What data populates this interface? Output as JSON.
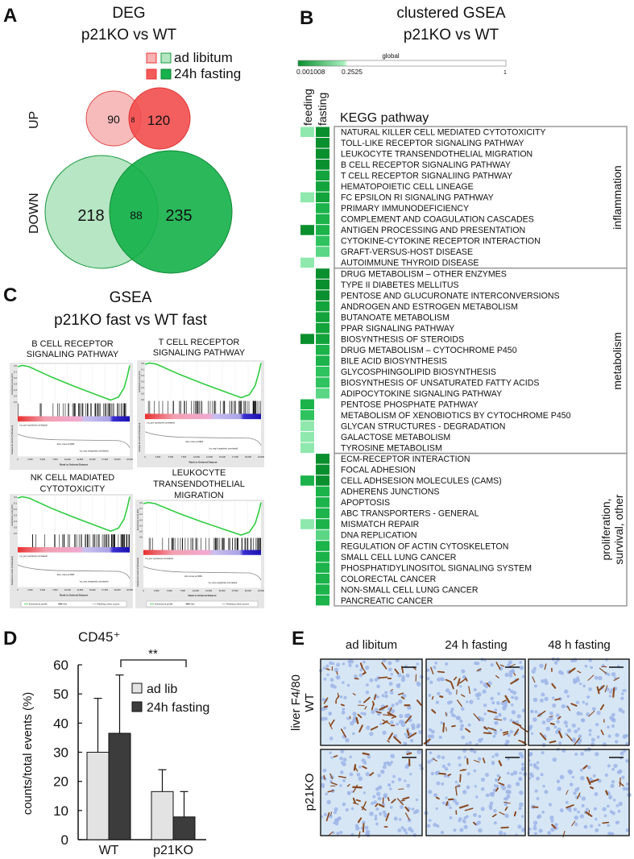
{
  "panel_labels": {
    "a": "A",
    "b": "B",
    "c": "C",
    "d": "D",
    "e": "E"
  },
  "panel_a": {
    "title_line1": "DEG",
    "title_line2": "p21KO vs WT",
    "legend": [
      {
        "label": "ad libitum",
        "up_color": "#f7b3b3",
        "down_color": "#b4e6c2"
      },
      {
        "label": "24h fasting",
        "up_color": "#f35a5a",
        "down_color": "#18b24c"
      }
    ],
    "up_label": "UP",
    "down_label": "DOWN"
  },
  "panel_b": {
    "title_line1": "clustered GSEA",
    "title_line2": "p21KO vs WT",
    "colorbar": {
      "label": "global",
      "min": "0.001008",
      "mid": "0.2525",
      "max": "1",
      "dark": "#0a8f2e",
      "light": "#a6f0bd"
    },
    "column_headers": [
      "feeding",
      "fasting"
    ],
    "table_header": "KEGG pathway",
    "groups": [
      {
        "name": "inflammation",
        "rows": [
          {
            "name": "NATURAL KILLER CELL MEDIATED CYTOTOXICITY",
            "feeding": "#8fe8ad",
            "fasting": "#0a8f2e"
          },
          {
            "name": "TOLL-LIKE RECEPTOR SIGNALING PATHWAY",
            "feeding": null,
            "fasting": "#0a8f2e"
          },
          {
            "name": "LEUKOCYTE TRANSENDOTHELIAL MIGRATION",
            "feeding": null,
            "fasting": "#0a8f2e"
          },
          {
            "name": "B CELL RECEPTOR SIGNALING PATHWAY",
            "feeding": null,
            "fasting": "#0a8f2e"
          },
          {
            "name": "T CELL RECEPTOR SIGNALIING PATHWAY",
            "feeding": null,
            "fasting": "#12a33c"
          },
          {
            "name": "HEMATOPOIETIC CELL LINEAGE",
            "feeding": null,
            "fasting": "#12a33c"
          },
          {
            "name": "FC EPSILON RI SIGNALING PATHWAY",
            "feeding": "#8fe8ad",
            "fasting": "#12a33c"
          },
          {
            "name": "PRIMARY IMMUNODEFICIENCY",
            "feeding": null,
            "fasting": "#1bb34a"
          },
          {
            "name": "COMPLEMENT AND COAGULATION CASCADES",
            "feeding": null,
            "fasting": "#1bb34a"
          },
          {
            "name": "ANTIGEN PROCESSING AND PRESENTATION",
            "feeding": "#0a8f2e",
            "fasting": "#1bb34a"
          },
          {
            "name": "CYTOKINE-CYTOKINE RECEPTOR INTERACTION",
            "feeding": null,
            "fasting": "#2ec35e"
          },
          {
            "name": "GRAFT-VERSUS-HOST DISEASE",
            "feeding": null,
            "fasting": "#5ad685"
          },
          {
            "name": "AUTOIMMUNE THYROID DISEASE",
            "feeding": "#8fe8ad",
            "fasting": null
          }
        ]
      },
      {
        "name": "metabolism",
        "rows": [
          {
            "name": "DRUG METABOLISM – OTHER ENZYMES",
            "feeding": null,
            "fasting": "#0a8f2e"
          },
          {
            "name": "TYPE II DIABETES MELLITUS",
            "feeding": null,
            "fasting": "#0a8f2e"
          },
          {
            "name": "PENTOSE AND GLUCURONATE INTERCONVERSIONS",
            "feeding": null,
            "fasting": "#0a8f2e"
          },
          {
            "name": "ANDROGEN AND ESTROGEN METABOLISM",
            "feeding": null,
            "fasting": "#12a33c"
          },
          {
            "name": "BUTANOATE METABOLISM",
            "feeding": null,
            "fasting": "#12a33c"
          },
          {
            "name": "PPAR SIGNALING PATHWAY",
            "feeding": null,
            "fasting": "#12a33c"
          },
          {
            "name": "BIOSYNTHESIS OF STEROIDS",
            "feeding": "#0a8f2e",
            "fasting": "#12a33c"
          },
          {
            "name": "DRUG METABOLISM – CYTOCHROME P450",
            "feeding": null,
            "fasting": "#1bb34a"
          },
          {
            "name": "BILE ACID BIOSYNTHESIS",
            "feeding": null,
            "fasting": "#1bb34a"
          },
          {
            "name": "GLYCOSPHINGOLIPID BIOSYNTHESIS",
            "feeding": null,
            "fasting": "#2ec35e"
          },
          {
            "name": "BIOSYNTHESIS OF UNSATURATED FATTY ACIDS",
            "feeding": null,
            "fasting": "#2ec35e"
          },
          {
            "name": "ADIPOCYTOKINE SIGNALING PATHWAY",
            "feeding": null,
            "fasting": "#5ad685"
          },
          {
            "name": "PENTOSE PHOSPHATE PATHWAY",
            "feeding": "#1bb34a",
            "fasting": null
          },
          {
            "name": "METABOLISM OF XENOBIOTICS BY CYTOCHROME P450",
            "feeding": "#2ec35e",
            "fasting": null
          },
          {
            "name": "GLYCAN STRUCTURES - DEGRADATION",
            "feeding": "#8fe8ad",
            "fasting": null
          },
          {
            "name": "GALACTOSE METABOLISM",
            "feeding": "#8fe8ad",
            "fasting": null
          },
          {
            "name": "TYROSINE METABOLISM",
            "feeding": "#8fe8ad",
            "fasting": null
          }
        ]
      },
      {
        "name": "proliferation, survival, other",
        "name_line1": "proliferation,",
        "name_line2": "survival, other",
        "rows": [
          {
            "name": "ECM-RECEPTOR INTERACTION",
            "feeding": null,
            "fasting": "#0a8f2e"
          },
          {
            "name": "FOCAL ADHESION",
            "feeding": null,
            "fasting": "#0a8f2e"
          },
          {
            "name": "CELL ADHSESION MOLECULES (CAMS)",
            "feeding": "#1bb34a",
            "fasting": "#0a8f2e"
          },
          {
            "name": "ADHERENS JUNCTIONS",
            "feeding": null,
            "fasting": "#1bb34a"
          },
          {
            "name": "APOPTOSIS",
            "feeding": null,
            "fasting": "#1bb34a"
          },
          {
            "name": "ABC TRANSPORTERS - GENERAL",
            "feeding": null,
            "fasting": "#1bb34a"
          },
          {
            "name": "MISMATCH REPAIR",
            "feeding": "#8fe8ad",
            "fasting": "#1bb34a"
          },
          {
            "name": "DNA REPLICATION",
            "feeding": null,
            "fasting": "#5ad685"
          },
          {
            "name": "REGULATION OF ACTIN CYTOSKELETON",
            "feeding": null,
            "fasting": "#1bb34a"
          },
          {
            "name": "SMALL CELL LUNG CANCER",
            "feeding": null,
            "fasting": "#1bb34a"
          },
          {
            "name": "PHOSPHATIDYLINOSITOL SIGNALING SYSTEM",
            "feeding": null,
            "fasting": "#1bb34a"
          },
          {
            "name": "COLORECTAL CANCER",
            "feeding": null,
            "fasting": "#1bb34a"
          },
          {
            "name": "NON-SMALL CELL LUNG CANCER",
            "feeding": null,
            "fasting": "#1bb34a"
          },
          {
            "name": "PANCREATIC CANCER",
            "feeding": null,
            "fasting": "#1bb34a"
          }
        ]
      }
    ]
  },
  "panel_c": {
    "title_line1": "GSEA",
    "title_line2": "p21KO fast vs WT fast",
    "plots": [
      {
        "title": [
          "B CELL RECEPTOR",
          "SIGNALING PATHWAY"
        ],
        "show_legend": false
      },
      {
        "title": [
          "T CELL RECEPTOR",
          "SIGNALING PATHWAY"
        ],
        "show_legend": false
      },
      {
        "title": [
          "NK CELL MADIATED",
          "CYTOTOXICITY"
        ],
        "show_legend": true
      },
      {
        "title": [
          "LEUKOCYTE",
          "TRANSENDOTHELIAL",
          "MIGRATION"
        ],
        "show_legend": true
      }
    ],
    "es_axis_label": "Enrichment score (ES)",
    "metric_axis_label": "Ranked list metric (PreRanked)",
    "x_axis_label": "Rank in Ordered Dataset",
    "es_ticks": [
      "0.0",
      "-0.1",
      "-0.2",
      "-0.3",
      "-0.4",
      "-0.5",
      "-0.6"
    ],
    "x_ticks": [
      "0",
      "2,500",
      "5,000",
      "7,500",
      "10,000",
      "12,500",
      "15,000",
      "17,500",
      "20,000",
      "22,500"
    ],
    "pos_label": "'na_pos' (positively correlated)",
    "neg_label": "'na_neg' (negatively correlated)",
    "zero_cross": "Zero cross at 6983",
    "legend": [
      "Enrichment profile",
      "Hits",
      "Ranking metric scores"
    ],
    "curve_color": "#2ecc40"
  },
  "panel_e": {
    "columns": [
      "ad libitum",
      "24 h fasting",
      "48 h fasting"
    ],
    "rows": [
      "WT",
      "p21KO"
    ],
    "stain_label": "liver F4/80",
    "stain_density": [
      [
        1.0,
        0.8,
        0.55
      ],
      [
        0.75,
        0.5,
        0.3
      ]
    ]
  },
  "chart_data": [
    {
      "type": "venn",
      "title": "DEG p21KO vs WT",
      "sets": [
        "ad libitum",
        "24h fasting"
      ],
      "up": {
        "ad_libitum_only": 90,
        "overlap": 8,
        "fasting_only": 120
      },
      "down": {
        "ad_libitum_only": 218,
        "overlap": 88,
        "fasting_only": 235
      }
    },
    {
      "type": "bar",
      "title": "CD45⁺",
      "ylabel": "counts/total events (%)",
      "xlabel": "",
      "categories": [
        "WT",
        "p21KO"
      ],
      "series": [
        {
          "name": "ad lib",
          "values": [
            30,
            16.5
          ],
          "errors": [
            18.5,
            7.5
          ],
          "color": "#e3e3e3"
        },
        {
          "name": "24h fasting",
          "values": [
            36.5,
            7.8
          ],
          "errors": [
            20,
            8.7
          ],
          "color": "#3c3c3c"
        }
      ],
      "ylim": [
        0,
        60
      ],
      "yticks": [
        "0",
        "10",
        "20",
        "30",
        "40",
        "50",
        "60"
      ],
      "significance": "**",
      "legend_position": "top-right"
    }
  ]
}
